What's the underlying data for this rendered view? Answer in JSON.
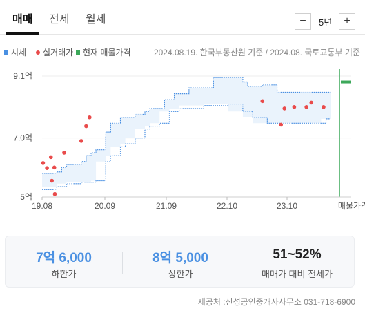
{
  "tabs": [
    {
      "label": "매매",
      "active": true
    },
    {
      "label": "전세",
      "active": false
    },
    {
      "label": "월세",
      "active": false
    }
  ],
  "period": {
    "minus": "−",
    "value": "5년",
    "plus": "+"
  },
  "legend": {
    "items": [
      {
        "label": "시세",
        "color": "#4a90e2",
        "shape": "square"
      },
      {
        "label": "실거래가",
        "color": "#e94b4b",
        "shape": "circle"
      },
      {
        "label": "현재 매물가격",
        "color": "#3ca85a",
        "shape": "square"
      }
    ],
    "source_note": "2024.08.19. 한국부동산원 기준 / 2024.08. 국토교통부 기준"
  },
  "chart_data": {
    "type": "area",
    "x_ticks": [
      "19.08",
      "20.09",
      "21.09",
      "22.10",
      "23.10"
    ],
    "x_end_label": "매물가격",
    "y_ticks": [
      "9.1억",
      "7.0억",
      "5억"
    ],
    "y_tick_values": [
      9.1,
      7.0,
      5.0
    ],
    "ylim": [
      5.0,
      9.1
    ],
    "xlim": [
      0,
      63
    ],
    "series": [
      {
        "name": "시세",
        "color": "#4a90e2",
        "upper": [
          [
            0,
            5.8
          ],
          [
            3,
            5.85
          ],
          [
            4,
            6.0
          ],
          [
            5,
            6.1
          ],
          [
            8,
            6.2
          ],
          [
            9,
            6.4
          ],
          [
            10,
            6.5
          ],
          [
            11,
            6.6
          ],
          [
            13,
            7.2
          ],
          [
            14,
            7.5
          ],
          [
            16,
            7.7
          ],
          [
            19,
            7.8
          ],
          [
            21,
            7.9
          ],
          [
            22,
            8.0
          ],
          [
            25,
            8.3
          ],
          [
            27,
            8.5
          ],
          [
            30,
            8.7
          ],
          [
            35,
            9.05
          ],
          [
            39,
            9.05
          ],
          [
            41,
            8.9
          ],
          [
            42,
            8.75
          ],
          [
            45,
            8.8
          ],
          [
            48,
            8.55
          ],
          [
            59,
            8.55
          ]
        ],
        "lower": [
          [
            0,
            5.25
          ],
          [
            3,
            5.35
          ],
          [
            5,
            5.45
          ],
          [
            8,
            5.5
          ],
          [
            10,
            5.5
          ],
          [
            11,
            5.55
          ],
          [
            13,
            6.2
          ],
          [
            14,
            6.4
          ],
          [
            16,
            6.7
          ],
          [
            17,
            6.8
          ],
          [
            19,
            7.0
          ],
          [
            21,
            7.3
          ],
          [
            22,
            7.4
          ],
          [
            24,
            7.5
          ],
          [
            26,
            7.9
          ],
          [
            28,
            8.0
          ],
          [
            33,
            8.1
          ],
          [
            38,
            8.15
          ],
          [
            41,
            7.9
          ],
          [
            43,
            7.7
          ],
          [
            46,
            7.5
          ],
          [
            48,
            7.5
          ],
          [
            57,
            7.5
          ],
          [
            58,
            7.65
          ],
          [
            59,
            7.65
          ]
        ]
      },
      {
        "name": "실거래가",
        "color": "#e94b4b",
        "type": "scatter",
        "points": [
          [
            0.2,
            6.15
          ],
          [
            1.0,
            5.98
          ],
          [
            1.8,
            6.35
          ],
          [
            2.0,
            5.55
          ],
          [
            2.5,
            6.0
          ],
          [
            2.6,
            5.1
          ],
          [
            4.5,
            6.5
          ],
          [
            8.0,
            6.9
          ],
          [
            9.0,
            7.4
          ],
          [
            9.7,
            7.7
          ],
          [
            45.0,
            8.25
          ],
          [
            48.8,
            7.45
          ],
          [
            49.5,
            8.0
          ],
          [
            51.5,
            8.05
          ],
          [
            54.0,
            8.05
          ],
          [
            55.0,
            8.2
          ],
          [
            57.5,
            8.05
          ]
        ]
      },
      {
        "name": "현재 매물가격",
        "color": "#3ca85a",
        "type": "listing",
        "x": 63,
        "value": 8.9
      }
    ]
  },
  "summary": [
    {
      "value": "7억 6,000",
      "label": "하한가",
      "accent": true
    },
    {
      "value": "8억 5,000",
      "label": "상한가",
      "accent": true
    },
    {
      "value": "51~52%",
      "label": "매매가 대비 전세가",
      "accent": false
    }
  ],
  "footer": {
    "text": "제공처 :신성공인중개사사무소 031-718-6900"
  }
}
